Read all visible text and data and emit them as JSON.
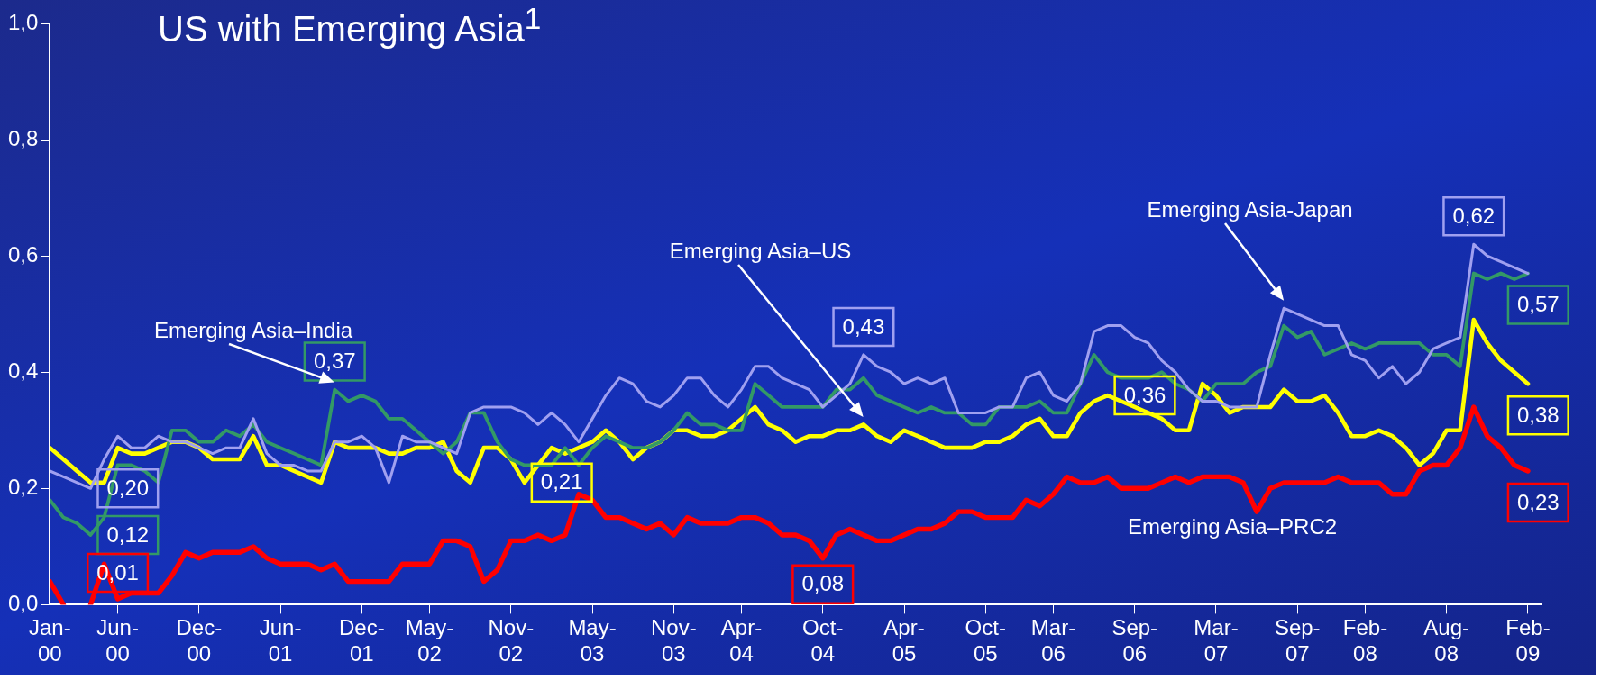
{
  "chart_data": {
    "type": "line",
    "title": "US with Emerging Asia$^{1}$",
    "x": [
      "2000-01",
      "2000-02",
      "2000-03",
      "2000-04",
      "2000-05",
      "2000-06",
      "2000-07",
      "2000-08",
      "2000-09",
      "2000-10",
      "2000-11",
      "2000-12",
      "2001-01",
      "2001-02",
      "2001-03",
      "2001-04",
      "2001-05",
      "2001-06",
      "2001-07",
      "2001-08",
      "2001-09",
      "2001-10",
      "2001-11",
      "2001-12",
      "2002-01",
      "2002-02",
      "2002-03",
      "2002-04",
      "2002-05",
      "2002-06",
      "2002-07",
      "2002-08",
      "2002-09",
      "2002-10",
      "2002-11",
      "2002-12",
      "2003-01",
      "2003-02",
      "2003-03",
      "2003-04",
      "2003-05",
      "2003-06",
      "2003-07",
      "2003-08",
      "2003-09",
      "2003-10",
      "2003-11",
      "2003-12",
      "2004-01",
      "2004-02",
      "2004-03",
      "2004-04",
      "2004-05",
      "2004-06",
      "2004-07",
      "2004-08",
      "2004-09",
      "2004-10",
      "2004-11",
      "2004-12",
      "2005-01",
      "2005-02",
      "2005-03",
      "2005-04",
      "2005-05",
      "2005-06",
      "2005-07",
      "2005-08",
      "2005-09",
      "2005-10",
      "2005-11",
      "2005-12",
      "2006-01",
      "2006-02",
      "2006-03",
      "2006-04",
      "2006-05",
      "2006-06",
      "2006-07",
      "2006-08",
      "2006-09",
      "2006-10",
      "2006-11",
      "2006-12",
      "2007-01",
      "2007-02",
      "2007-03",
      "2007-04",
      "2007-05",
      "2007-06",
      "2007-07",
      "2007-08",
      "2007-09",
      "2007-10",
      "2007-11",
      "2007-12",
      "2008-01",
      "2008-02",
      "2008-03",
      "2008-04",
      "2008-05",
      "2008-06",
      "2008-07",
      "2008-08",
      "2008-09",
      "2008-10",
      "2008-11",
      "2008-12",
      "2009-01",
      "2009-02"
    ],
    "series": [
      {
        "name": "Emerging Asia-Japan",
        "color": "#a0a0f0",
        "values": [
          0.23,
          0.22,
          0.21,
          0.2,
          0.25,
          0.29,
          0.27,
          0.27,
          0.29,
          0.28,
          0.28,
          0.27,
          0.26,
          0.27,
          0.27,
          0.32,
          0.26,
          0.24,
          0.24,
          0.23,
          0.23,
          0.28,
          0.28,
          0.29,
          0.27,
          0.21,
          0.29,
          0.28,
          0.28,
          0.27,
          0.26,
          0.33,
          0.34,
          0.34,
          0.34,
          0.33,
          0.31,
          0.33,
          0.31,
          0.28,
          0.32,
          0.36,
          0.39,
          0.38,
          0.35,
          0.34,
          0.36,
          0.39,
          0.39,
          0.36,
          0.34,
          0.37,
          0.41,
          0.41,
          0.39,
          0.38,
          0.37,
          0.34,
          0.36,
          0.38,
          0.43,
          0.41,
          0.4,
          0.38,
          0.39,
          0.38,
          0.39,
          0.33,
          0.33,
          0.33,
          0.34,
          0.34,
          0.39,
          0.4,
          0.36,
          0.35,
          0.38,
          0.47,
          0.48,
          0.48,
          0.46,
          0.45,
          0.42,
          0.4,
          0.37,
          0.35,
          0.35,
          0.34,
          0.34,
          0.34,
          0.43,
          0.51,
          0.5,
          0.49,
          0.48,
          0.48,
          0.43,
          0.42,
          0.39,
          0.41,
          0.38,
          0.4,
          0.44,
          0.45,
          0.46,
          0.62,
          0.6,
          0.59,
          0.58,
          0.57
        ],
        "value_labels": [
          null,
          null,
          null,
          "0,20",
          null,
          null,
          null,
          null,
          null,
          null,
          null,
          null,
          null,
          null,
          null,
          null,
          null,
          null,
          null,
          null,
          null,
          null,
          null,
          null,
          null,
          null,
          null,
          null,
          null,
          null,
          null,
          null,
          null,
          null,
          null,
          null,
          null,
          null,
          null,
          null,
          null,
          null,
          null,
          null,
          null,
          null,
          null,
          null,
          null,
          null,
          null,
          null,
          null,
          null,
          null,
          null,
          null,
          null,
          null,
          null,
          "0,43",
          null,
          null,
          null,
          null,
          null,
          null,
          null,
          null,
          null,
          null,
          null,
          null,
          null,
          null,
          null,
          null,
          null,
          null,
          null,
          null,
          null,
          null,
          null,
          null,
          null,
          null,
          null,
          null,
          null,
          null,
          null,
          null,
          null,
          null,
          null,
          null,
          null,
          null,
          null,
          null,
          null,
          null,
          null,
          null,
          "0,62",
          null,
          null,
          null,
          null
        ]
      },
      {
        "name": "Emerging Asia–India",
        "color": "#339966",
        "values": [
          0.18,
          0.15,
          0.14,
          0.12,
          0.15,
          0.24,
          0.24,
          0.23,
          0.21,
          0.3,
          0.3,
          0.28,
          0.28,
          0.3,
          0.29,
          0.31,
          0.28,
          0.27,
          0.26,
          0.25,
          0.24,
          0.37,
          0.35,
          0.36,
          0.35,
          0.32,
          0.32,
          0.3,
          0.28,
          0.26,
          0.28,
          0.33,
          0.33,
          0.28,
          0.25,
          0.24,
          0.24,
          0.24,
          0.27,
          0.24,
          0.27,
          0.29,
          0.28,
          0.27,
          0.27,
          0.28,
          0.3,
          0.33,
          0.31,
          0.31,
          0.3,
          0.3,
          0.38,
          0.36,
          0.34,
          0.34,
          0.34,
          0.34,
          0.37,
          0.37,
          0.39,
          0.36,
          0.35,
          0.34,
          0.33,
          0.34,
          0.33,
          0.33,
          0.31,
          0.31,
          0.34,
          0.34,
          0.34,
          0.35,
          0.33,
          0.33,
          0.38,
          0.43,
          0.4,
          0.39,
          0.39,
          0.39,
          0.4,
          0.38,
          0.37,
          0.35,
          0.38,
          0.38,
          0.38,
          0.4,
          0.41,
          0.48,
          0.46,
          0.47,
          0.43,
          0.44,
          0.45,
          0.44,
          0.45,
          0.45,
          0.45,
          0.45,
          0.43,
          0.43,
          0.41,
          0.57,
          0.56,
          0.57,
          0.56,
          0.57
        ],
        "value_labels": [
          null,
          null,
          null,
          "0,12",
          null,
          null,
          null,
          null,
          null,
          null,
          null,
          null,
          null,
          null,
          null,
          null,
          null,
          null,
          null,
          null,
          null,
          "0,37",
          null,
          null,
          null,
          null,
          null,
          null,
          null,
          null,
          null,
          null,
          null,
          null,
          null,
          null,
          null,
          null,
          null,
          null,
          null,
          null,
          null,
          null,
          null,
          null,
          null,
          null,
          null,
          null,
          null,
          null,
          null,
          null,
          null,
          null,
          null,
          null,
          null,
          null,
          null,
          null,
          null,
          null,
          null,
          null,
          null,
          null,
          null,
          null,
          null,
          null,
          null,
          null,
          null,
          null,
          null,
          null,
          null,
          null,
          null,
          null,
          null,
          null,
          null,
          null,
          null,
          null,
          null,
          null,
          null,
          null,
          null,
          null,
          null,
          null,
          null,
          null,
          null,
          null,
          null,
          null,
          null,
          null,
          null,
          null,
          null,
          null,
          null,
          "0,57"
        ]
      },
      {
        "name": "Emerging Asia–US",
        "color": "#ffff00",
        "values": [
          0.27,
          0.25,
          0.23,
          0.21,
          0.21,
          0.27,
          0.26,
          0.26,
          0.27,
          0.28,
          0.28,
          0.27,
          0.25,
          0.25,
          0.25,
          0.29,
          0.24,
          0.24,
          0.23,
          0.22,
          0.21,
          0.28,
          0.27,
          0.27,
          0.27,
          0.26,
          0.26,
          0.27,
          0.27,
          0.28,
          0.23,
          0.21,
          0.27,
          0.27,
          0.25,
          0.21,
          0.24,
          0.27,
          0.26,
          0.27,
          0.28,
          0.3,
          0.28,
          0.25,
          0.27,
          0.28,
          0.3,
          0.3,
          0.29,
          0.29,
          0.3,
          0.32,
          0.34,
          0.31,
          0.3,
          0.28,
          0.29,
          0.29,
          0.3,
          0.3,
          0.31,
          0.29,
          0.28,
          0.3,
          0.29,
          0.28,
          0.27,
          0.27,
          0.27,
          0.28,
          0.28,
          0.29,
          0.31,
          0.32,
          0.29,
          0.29,
          0.33,
          0.35,
          0.36,
          0.35,
          0.34,
          0.33,
          0.32,
          0.3,
          0.3,
          0.38,
          0.36,
          0.33,
          0.34,
          0.34,
          0.34,
          0.37,
          0.35,
          0.35,
          0.36,
          0.33,
          0.29,
          0.29,
          0.3,
          0.29,
          0.27,
          0.24,
          0.26,
          0.3,
          0.3,
          0.49,
          0.45,
          0.42,
          0.4,
          0.38
        ],
        "value_labels": [
          null,
          null,
          null,
          null,
          null,
          null,
          null,
          null,
          null,
          null,
          null,
          null,
          null,
          null,
          null,
          null,
          null,
          null,
          null,
          null,
          null,
          null,
          null,
          null,
          null,
          null,
          null,
          null,
          null,
          null,
          null,
          null,
          null,
          null,
          null,
          "0,21",
          null,
          null,
          null,
          null,
          null,
          null,
          null,
          null,
          null,
          null,
          null,
          null,
          null,
          null,
          null,
          null,
          null,
          null,
          null,
          null,
          null,
          null,
          null,
          null,
          null,
          null,
          null,
          null,
          null,
          null,
          null,
          null,
          null,
          null,
          null,
          null,
          null,
          null,
          null,
          null,
          null,
          null,
          "0,36",
          null,
          null,
          null,
          null,
          null,
          null,
          null,
          null,
          null,
          null,
          null,
          null,
          null,
          null,
          null,
          null,
          null,
          null,
          null,
          null,
          null,
          null,
          null,
          null,
          null,
          null,
          null,
          null,
          null,
          null,
          "0,38"
        ]
      },
      {
        "name": "Emerging Asia–PRC2",
        "color": "#ff0000",
        "values": [
          0.04,
          0,
          null,
          0,
          0.07,
          0.01,
          0.02,
          0.02,
          0.02,
          0.05,
          0.09,
          0.08,
          0.09,
          0.09,
          0.09,
          0.1,
          0.08,
          0.07,
          0.07,
          0.07,
          0.06,
          0.07,
          0.04,
          0.04,
          0.04,
          0.04,
          0.07,
          0.07,
          0.07,
          0.11,
          0.11,
          0.1,
          0.04,
          0.06,
          0.11,
          0.11,
          0.12,
          0.11,
          0.12,
          0.19,
          0.18,
          0.15,
          0.15,
          0.14,
          0.13,
          0.14,
          0.12,
          0.15,
          0.14,
          0.14,
          0.14,
          0.15,
          0.15,
          0.14,
          0.12,
          0.12,
          0.11,
          0.08,
          0.12,
          0.13,
          0.12,
          0.11,
          0.11,
          0.12,
          0.13,
          0.13,
          0.14,
          0.16,
          0.16,
          0.15,
          0.15,
          0.15,
          0.18,
          0.17,
          0.19,
          0.22,
          0.21,
          0.21,
          0.22,
          0.2,
          0.2,
          0.2,
          0.21,
          0.22,
          0.21,
          0.22,
          0.22,
          0.22,
          0.21,
          0.16,
          0.2,
          0.21,
          0.21,
          0.21,
          0.21,
          0.22,
          0.21,
          0.21,
          0.21,
          0.19,
          0.19,
          0.23,
          0.24,
          0.24,
          0.27,
          0.34,
          0.29,
          0.27,
          0.24,
          0.23
        ],
        "value_labels": [
          null,
          null,
          null,
          null,
          null,
          "0,01",
          null,
          null,
          null,
          null,
          null,
          null,
          null,
          null,
          null,
          null,
          null,
          null,
          null,
          null,
          null,
          null,
          null,
          null,
          null,
          null,
          null,
          null,
          null,
          null,
          null,
          null,
          null,
          null,
          null,
          null,
          null,
          null,
          null,
          null,
          null,
          null,
          null,
          null,
          null,
          null,
          null,
          null,
          null,
          null,
          null,
          null,
          null,
          null,
          null,
          null,
          null,
          "0,08",
          null,
          null,
          null,
          null,
          null,
          null,
          null,
          null,
          null,
          null,
          null,
          null,
          null,
          null,
          null,
          null,
          null,
          null,
          null,
          null,
          null,
          null,
          null,
          null,
          null,
          null,
          null,
          null,
          null,
          null,
          null,
          null,
          null,
          null,
          null,
          null,
          null,
          null,
          null,
          null,
          null,
          null,
          null,
          null,
          null,
          null,
          null,
          null,
          null,
          null,
          null,
          "0,23"
        ]
      }
    ],
    "xlim": [
      "2000-01",
      "2009-03"
    ],
    "xticks": [
      {
        "value": "2000-01",
        "label": "Jan-00"
      },
      {
        "value": "2000-06",
        "label": "Jun-00"
      },
      {
        "value": "2000-12",
        "label": "Dec-00"
      },
      {
        "value": "2001-06",
        "label": "Jun-01"
      },
      {
        "value": "2001-12",
        "label": "Dec-01"
      },
      {
        "value": "2002-05",
        "label": "May-02"
      },
      {
        "value": "2002-11",
        "label": "Nov-02"
      },
      {
        "value": "2003-05",
        "label": "May-03"
      },
      {
        "value": "2003-11",
        "label": "Nov-03"
      },
      {
        "value": "2004-04",
        "label": "Apr-04"
      },
      {
        "value": "2004-10",
        "label": "Oct-04"
      },
      {
        "value": "2005-04",
        "label": "Apr-05"
      },
      {
        "value": "2005-10",
        "label": "Oct-05"
      },
      {
        "value": "2006-03",
        "label": "Mar-06"
      },
      {
        "value": "2006-09",
        "label": "Sep-06"
      },
      {
        "value": "2007-03",
        "label": "Mar-07"
      },
      {
        "value": "2007-09",
        "label": "Sep-07"
      },
      {
        "value": "2008-02",
        "label": "Feb-08"
      },
      {
        "value": "2008-08",
        "label": "Aug-08"
      },
      {
        "value": "2009-02",
        "label": "Feb-09"
      }
    ],
    "ylim": [
      0,
      1
    ],
    "yticks": [
      {
        "value": 0,
        "label": "0,0"
      },
      {
        "value": 0.2,
        "label": "0,2"
      },
      {
        "value": 0.4,
        "label": "0,4"
      },
      {
        "value": 0.6,
        "label": "0,6"
      },
      {
        "value": 0.8,
        "label": "0,8"
      },
      {
        "value": 1,
        "label": "1,0"
      }
    ]
  }
}
